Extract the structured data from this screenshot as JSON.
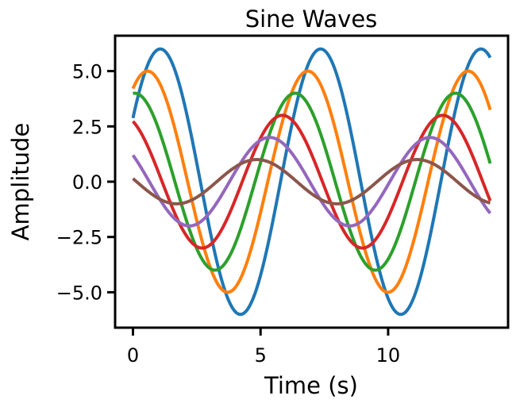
{
  "chart_data": {
    "type": "line",
    "title": "Sine Waves",
    "xlabel": "Time (s)",
    "ylabel": "Amplitude",
    "xlim": [
      -0.7,
      14.7
    ],
    "ylim": [
      -6.6,
      6.6
    ],
    "grid": false,
    "legend": "none",
    "x_ticks": [
      {
        "value": 0,
        "label": "0"
      },
      {
        "value": 5,
        "label": "5"
      },
      {
        "value": 10,
        "label": "10"
      }
    ],
    "y_ticks": [
      {
        "value": 5.0,
        "label": "5.0"
      },
      {
        "value": 2.5,
        "label": "2.5"
      },
      {
        "value": 0.0,
        "label": "0.0"
      },
      {
        "value": -2.5,
        "label": "−2.5"
      },
      {
        "value": -5.0,
        "label": "−5.0"
      }
    ],
    "x_range": [
      0,
      14
    ],
    "period": 6.283,
    "series": [
      {
        "amplitude": 6,
        "phase": 0.5,
        "color": "#1f77b4"
      },
      {
        "amplitude": 5,
        "phase": 1.0,
        "color": "#ff7f0e"
      },
      {
        "amplitude": 4,
        "phase": 1.5,
        "color": "#2ca02c"
      },
      {
        "amplitude": 3,
        "phase": 2.0,
        "color": "#d62728"
      },
      {
        "amplitude": 2,
        "phase": 2.5,
        "color": "#9467bd"
      },
      {
        "amplitude": 1,
        "phase": 3.0,
        "color": "#8c564b"
      }
    ]
  }
}
